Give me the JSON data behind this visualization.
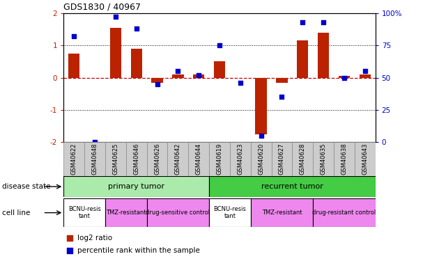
{
  "title": "GDS1830 / 40967",
  "samples": [
    "GSM40622",
    "GSM40648",
    "GSM40625",
    "GSM40646",
    "GSM40626",
    "GSM40642",
    "GSM40644",
    "GSM40619",
    "GSM40623",
    "GSM40620",
    "GSM40627",
    "GSM40628",
    "GSM40635",
    "GSM40638",
    "GSM40643"
  ],
  "log2_ratio": [
    0.75,
    0.0,
    1.55,
    0.9,
    -0.15,
    0.1,
    0.1,
    0.5,
    0.0,
    -1.75,
    -0.15,
    1.15,
    1.4,
    0.05,
    0.1
  ],
  "percentile": [
    82,
    0,
    97,
    88,
    45,
    55,
    52,
    75,
    46,
    5,
    35,
    93,
    93,
    50,
    55
  ],
  "bar_color": "#bb2200",
  "dot_color": "#0000cc",
  "zero_line_color": "#cc0000",
  "dotted_line_color": "#000000",
  "ylim": [
    -2,
    2
  ],
  "yticks_left": [
    -2,
    -1,
    0,
    1,
    2
  ],
  "yticks_right": [
    0,
    25,
    50,
    75,
    100
  ],
  "disease_state_groups": [
    {
      "label": "primary tumor",
      "start": 0,
      "end": 7,
      "color": "#aaeaaa"
    },
    {
      "label": "recurrent tumor",
      "start": 7,
      "end": 15,
      "color": "#44cc44"
    }
  ],
  "cell_line_groups": [
    {
      "label": "BCNU-resis\ntant",
      "start": 0,
      "end": 2,
      "color": "#ffffff"
    },
    {
      "label": "TMZ-resistant",
      "start": 2,
      "end": 4,
      "color": "#ee88ee"
    },
    {
      "label": "drug-sensitive control",
      "start": 4,
      "end": 7,
      "color": "#ee88ee"
    },
    {
      "label": "BCNU-resis\ntant",
      "start": 7,
      "end": 9,
      "color": "#ffffff"
    },
    {
      "label": "TMZ-resistant",
      "start": 9,
      "end": 12,
      "color": "#ee88ee"
    },
    {
      "label": "drug-resistant control",
      "start": 12,
      "end": 15,
      "color": "#ee88ee"
    }
  ],
  "legend_items": [
    {
      "label": "log2 ratio",
      "color": "#bb2200"
    },
    {
      "label": "percentile rank within the sample",
      "color": "#0000cc"
    }
  ],
  "disease_state_label": "disease state",
  "cell_line_label": "cell line",
  "bar_width": 0.55,
  "sample_label_bg": "#cccccc",
  "fig_bg": "#ffffff"
}
